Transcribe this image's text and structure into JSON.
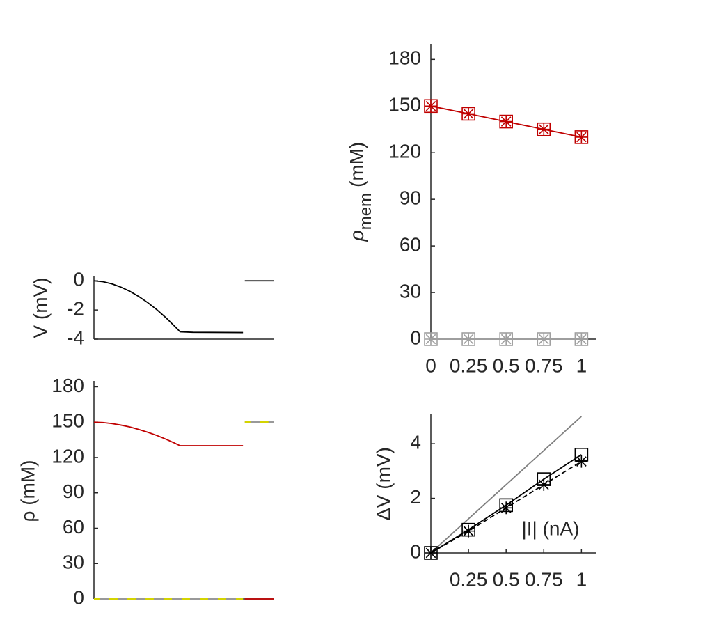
{
  "chart_data": [
    {
      "type": "line",
      "ylabel": "V (mV)",
      "xlim": [
        0,
        100
      ],
      "ylim": [
        -4,
        0.3
      ],
      "yticks": [
        0,
        -2,
        -4
      ],
      "x": [
        0,
        5,
        10,
        15,
        20,
        25,
        30,
        35,
        40,
        45,
        48,
        55,
        83,
        83.5,
        84,
        100
      ],
      "series": [
        {
          "color": "#000000",
          "values": [
            0,
            -0.06,
            -0.21,
            -0.43,
            -0.72,
            -1.08,
            -1.5,
            -1.98,
            -2.52,
            -3.12,
            -3.5,
            -3.53,
            -3.55,
            null,
            0,
            0
          ]
        }
      ]
    },
    {
      "type": "line",
      "ylabel": "ρ (mM)",
      "xlim": [
        0,
        100
      ],
      "ylim": [
        0,
        185
      ],
      "yticks": [
        0,
        30,
        60,
        90,
        120,
        150,
        180
      ],
      "x": [
        0,
        5,
        10,
        15,
        20,
        25,
        30,
        35,
        40,
        45,
        48,
        55,
        83,
        83.5,
        84,
        100
      ],
      "series": [
        {
          "color": "#c00000",
          "values": [
            150,
            149.66,
            148.8,
            147.5,
            145.9,
            143.8,
            141.4,
            138.7,
            135.6,
            132.2,
            130,
            130,
            130,
            null,
            0,
            0
          ]
        },
        {
          "color": "#999999",
          "dash_color": "#d4d400",
          "values": [
            0,
            0,
            0,
            0,
            0,
            0,
            0,
            0,
            0,
            0,
            0,
            0,
            0,
            null,
            150,
            150
          ]
        }
      ]
    },
    {
      "type": "line",
      "ylabel_symbol": "ρ",
      "ylabel_sub": "mem",
      "ylabel_unit": "(mM)",
      "xlim": [
        0,
        1.1
      ],
      "ylim": [
        0,
        190
      ],
      "xticks": [
        0,
        0.25,
        0.5,
        0.75,
        1
      ],
      "yticks": [
        0,
        30,
        60,
        90,
        120,
        150,
        180
      ],
      "x": [
        0,
        0.25,
        0.5,
        0.75,
        1
      ],
      "series": [
        {
          "color": "#c00000",
          "markers": [
            "square",
            "asterisk"
          ],
          "values": [
            150,
            145,
            140,
            135,
            130
          ]
        },
        {
          "color": "#a0a0a0",
          "markers": [
            "square",
            "asterisk"
          ],
          "values": [
            0,
            0,
            0,
            0,
            0
          ]
        }
      ]
    },
    {
      "type": "line",
      "ylabel": "ΔV (mV)",
      "annotation": "|I| (nA)",
      "xlim": [
        0,
        1.1
      ],
      "ylim": [
        0,
        5.1
      ],
      "xticks": [
        0.25,
        0.5,
        0.75,
        1
      ],
      "yticks": [
        0,
        2,
        4
      ],
      "x": [
        0,
        0.25,
        0.5,
        0.75,
        1
      ],
      "series": [
        {
          "color": "#808080",
          "x": [
            0,
            1
          ],
          "values": [
            0,
            5
          ]
        },
        {
          "color": "#000000",
          "markers": [
            "square"
          ],
          "values": [
            0,
            0.85,
            1.75,
            2.7,
            3.6
          ]
        },
        {
          "color": "#000000",
          "dash": true,
          "markers": [
            "asterisk"
          ],
          "values": [
            0,
            0.8,
            1.65,
            2.5,
            3.35
          ]
        }
      ]
    }
  ]
}
